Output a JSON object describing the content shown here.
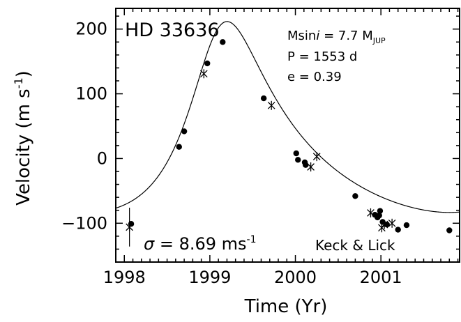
{
  "chart_data": {
    "type": "scatter",
    "title": "HD 33636",
    "xlabel": "Time (Yr)",
    "ylabel_main": "Velocity (m s",
    "ylabel_sup": "-1",
    "ylabel_end": ")",
    "xlim": [
      1997.9,
      2001.92
    ],
    "ylim": [
      -160,
      232
    ],
    "x_ticks": [
      1998,
      1999,
      2000,
      2001
    ],
    "x_tick_labels": [
      "1998",
      "1999",
      "2000",
      "2001"
    ],
    "y_ticks": [
      200,
      100,
      0,
      -100
    ],
    "y_tick_labels": [
      "200",
      "100",
      "0",
      "−100"
    ],
    "params": {
      "msini_prefix": "Msin",
      "msini_i": "i",
      "msini_value": " = 7.7 M",
      "msini_sub": "JUP",
      "period": "P = 1553 d",
      "ecc": "e = 0.39"
    },
    "sigma": {
      "symbol": "σ",
      "text": " = 8.69 ms",
      "sup": "-1"
    },
    "source_label": "Keck & Lick",
    "orbit": {
      "period_days": 1553,
      "eccentricity": 0.39,
      "K": 147.5,
      "omega_deg": 335,
      "gamma": 12,
      "periastron_year": 1999.08
    },
    "series": [
      {
        "marker": "dot",
        "points": [
          [
            1998.08,
            -101
          ],
          [
            1998.64,
            18
          ],
          [
            1998.7,
            42
          ],
          [
            1998.97,
            147
          ],
          [
            1999.15,
            180
          ],
          [
            1999.63,
            93
          ],
          [
            2000.01,
            8
          ],
          [
            2000.03,
            -2
          ],
          [
            2000.11,
            -6
          ],
          [
            2000.12,
            -10
          ],
          [
            2000.7,
            -58
          ],
          [
            2000.93,
            -87
          ],
          [
            2000.96,
            -91
          ],
          [
            2000.98,
            -88
          ],
          [
            2000.99,
            -81
          ],
          [
            2001.02,
            -98
          ],
          [
            2001.07,
            -102
          ],
          [
            2001.2,
            -110
          ],
          [
            2001.3,
            -103
          ],
          [
            2001.8,
            -111
          ]
        ]
      },
      {
        "marker": "star",
        "points": [
          [
            1998.06,
            -106
          ],
          [
            1998.93,
            131
          ],
          [
            1999.72,
            82
          ],
          [
            2000.18,
            -13
          ],
          [
            2000.25,
            3
          ],
          [
            2000.88,
            -84
          ],
          [
            2001.01,
            -107
          ],
          [
            2001.04,
            -102
          ],
          [
            2001.13,
            -100
          ]
        ]
      }
    ],
    "error_bars": [
      {
        "x": 1998.06,
        "y": -106,
        "err": 30
      }
    ]
  }
}
